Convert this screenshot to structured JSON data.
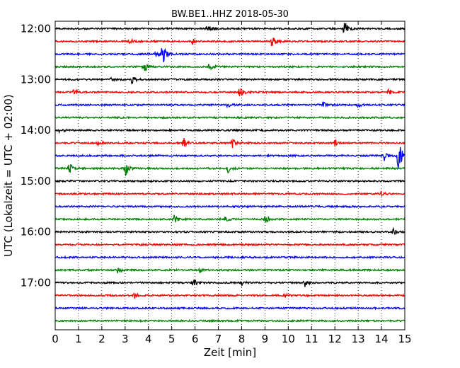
{
  "chart_data": {
    "type": "line",
    "title": "BW.BE1..HHZ 2018-05-30",
    "xlabel": "Zeit  [min]",
    "ylabel": "UTC (Lokalzeit = UTC + 02:00)",
    "xlim": [
      0,
      15
    ],
    "x_ticks": [
      "0",
      "1",
      "2",
      "3",
      "4",
      "5",
      "6",
      "7",
      "8",
      "9",
      "10",
      "11",
      "12",
      "13",
      "14",
      "15"
    ],
    "y_tick_labels": [
      "12:00",
      "13:00",
      "14:00",
      "15:00",
      "16:00",
      "17:00"
    ],
    "grid": "vertical dotted at each minute",
    "trace_colors": [
      "#000000",
      "#ff0000",
      "#0000ff",
      "#008000"
    ],
    "traces": [
      {
        "start": "12:00",
        "color": "#000000",
        "events": [
          [
            6.5,
            8
          ],
          [
            12.4,
            12
          ]
        ]
      },
      {
        "start": "12:15",
        "color": "#ff0000",
        "events": [
          [
            3.2,
            4
          ],
          [
            5.9,
            4
          ],
          [
            9.3,
            9
          ]
        ]
      },
      {
        "start": "12:30",
        "color": "#0000ff",
        "events": [
          [
            4.6,
            16
          ],
          [
            4.3,
            6
          ]
        ]
      },
      {
        "start": "12:45",
        "color": "#008000",
        "events": [
          [
            3.8,
            10
          ],
          [
            6.6,
            5
          ]
        ]
      },
      {
        "start": "13:00",
        "color": "#000000",
        "events": [
          [
            3.3,
            6
          ],
          [
            2.4,
            3
          ]
        ]
      },
      {
        "start": "13:15",
        "color": "#ff0000",
        "events": [
          [
            0.8,
            4
          ],
          [
            7.9,
            8
          ],
          [
            14.3,
            4
          ]
        ]
      },
      {
        "start": "13:30",
        "color": "#0000ff",
        "events": [
          [
            11.5,
            4
          ],
          [
            13.0,
            3
          ],
          [
            7.4,
            3
          ]
        ]
      },
      {
        "start": "13:45",
        "color": "#008000",
        "events": []
      },
      {
        "start": "14:00",
        "color": "#000000",
        "events": [
          [
            0.2,
            4
          ]
        ]
      },
      {
        "start": "14:15",
        "color": "#ff0000",
        "events": [
          [
            1.8,
            6
          ],
          [
            5.5,
            8
          ],
          [
            7.6,
            7
          ],
          [
            12.0,
            6
          ]
        ]
      },
      {
        "start": "14:30",
        "color": "#0000ff",
        "events": [
          [
            14.7,
            30
          ],
          [
            14.1,
            8
          ]
        ]
      },
      {
        "start": "14:45",
        "color": "#008000",
        "events": [
          [
            0.6,
            10
          ],
          [
            3.0,
            13
          ],
          [
            7.4,
            6
          ]
        ]
      },
      {
        "start": "15:00",
        "color": "#000000",
        "events": []
      },
      {
        "start": "15:15",
        "color": "#ff0000",
        "events": [
          [
            14.0,
            3
          ]
        ]
      },
      {
        "start": "15:30",
        "color": "#0000ff",
        "events": []
      },
      {
        "start": "15:45",
        "color": "#008000",
        "events": [
          [
            5.1,
            6
          ],
          [
            9.0,
            7
          ],
          [
            7.3,
            3
          ]
        ]
      },
      {
        "start": "16:00",
        "color": "#000000",
        "events": [
          [
            14.5,
            4
          ]
        ]
      },
      {
        "start": "16:15",
        "color": "#ff0000",
        "events": []
      },
      {
        "start": "16:30",
        "color": "#0000ff",
        "events": []
      },
      {
        "start": "16:45",
        "color": "#008000",
        "events": [
          [
            2.7,
            5
          ],
          [
            6.2,
            3
          ]
        ]
      },
      {
        "start": "17:00",
        "color": "#000000",
        "events": [
          [
            5.9,
            6
          ],
          [
            8.0,
            3
          ],
          [
            10.7,
            7
          ]
        ]
      },
      {
        "start": "17:15",
        "color": "#ff0000",
        "events": [
          [
            3.4,
            4
          ],
          [
            9.9,
            3
          ]
        ]
      },
      {
        "start": "17:30",
        "color": "#0000ff",
        "events": []
      },
      {
        "start": "17:45",
        "color": "#008000",
        "events": []
      }
    ]
  }
}
